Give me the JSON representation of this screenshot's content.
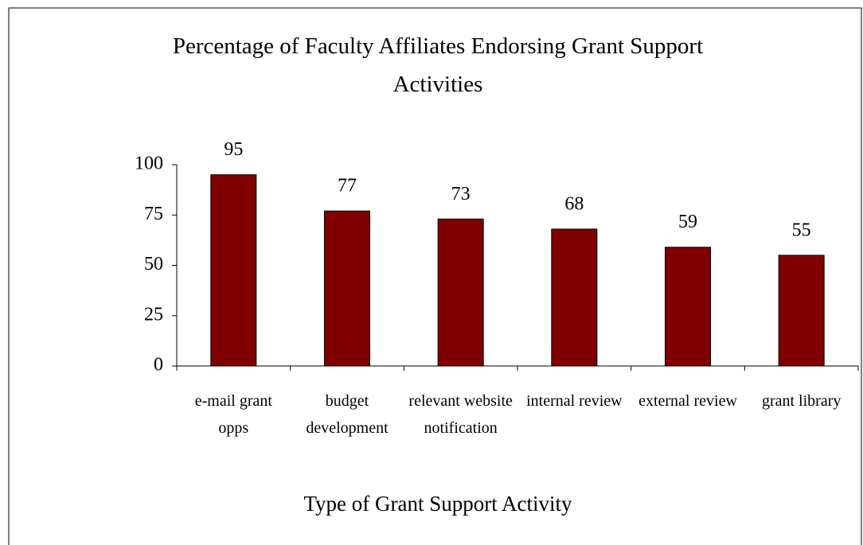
{
  "chart_data": {
    "type": "bar",
    "title": "Percentage of Faculty Affiliates Endorsing Grant Support Activities",
    "x_label": "Type of Grant Support Activity",
    "categories": [
      "e-mail grant opps",
      "budget development",
      "relevant website notification",
      "internal review",
      "external review",
      "grant library"
    ],
    "values": [
      95,
      77,
      73,
      68,
      59,
      55
    ],
    "color": "#800000",
    "ylim": [
      0,
      100
    ],
    "yticks": [
      0,
      25,
      50,
      75,
      100
    ],
    "grid": false
  }
}
